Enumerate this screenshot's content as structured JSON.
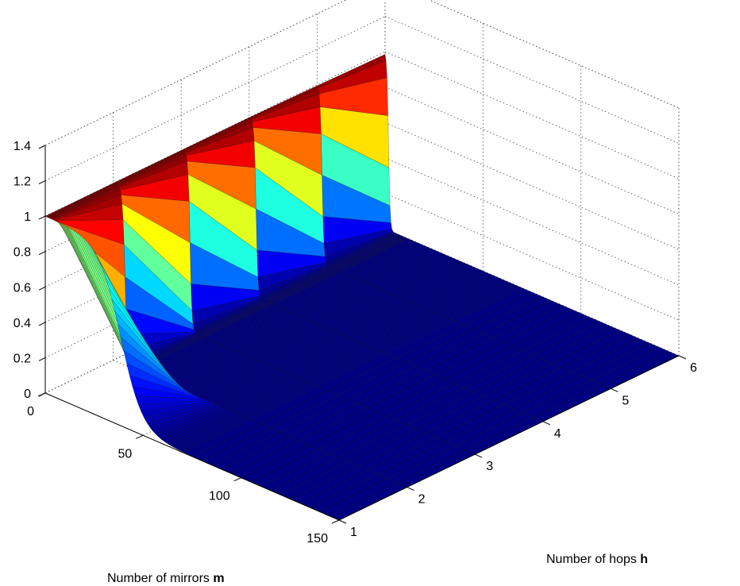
{
  "chart_data": {
    "type": "surface",
    "title": "",
    "xlabel": "Number of mirrors",
    "xlabel_symbol": "m",
    "ylabel": "Number of hops",
    "ylabel_symbol": "h",
    "zlabel": "",
    "xlim": [
      0,
      150
    ],
    "ylim": [
      1,
      6
    ],
    "zlim": [
      0,
      1.4
    ],
    "x_ticks": [
      0,
      50,
      100,
      150
    ],
    "y_ticks": [
      1,
      2,
      3,
      4,
      5,
      6
    ],
    "z_ticks": [
      0,
      0.2,
      0.4,
      0.6,
      0.8,
      1,
      1.2,
      1.4
    ],
    "z_tick_labels": [
      "0",
      "0.2",
      "0.4",
      "0.6",
      "0.8",
      "1",
      "1.2",
      "1.4"
    ],
    "grid": true,
    "colormap": "jet",
    "hops": [
      1,
      2,
      3,
      4,
      5,
      6
    ],
    "description_of_values": "value is 1 for small numbers of mirrors and drops to 0 beyond a threshold that grows with hop count",
    "thresholds": [
      {
        "hops": 1,
        "drop_start": 22,
        "drop_end": 55
      },
      {
        "hops": 2,
        "drop_start": 4,
        "drop_end": 8
      },
      {
        "hops": 3,
        "drop_start": 3,
        "drop_end": 6
      },
      {
        "hops": 4,
        "drop_start": 2,
        "drop_end": 5
      },
      {
        "hops": 5,
        "drop_start": 1,
        "drop_end": 4
      },
      {
        "hops": 6,
        "drop_start": 0.5,
        "drop_end": 3
      }
    ]
  }
}
